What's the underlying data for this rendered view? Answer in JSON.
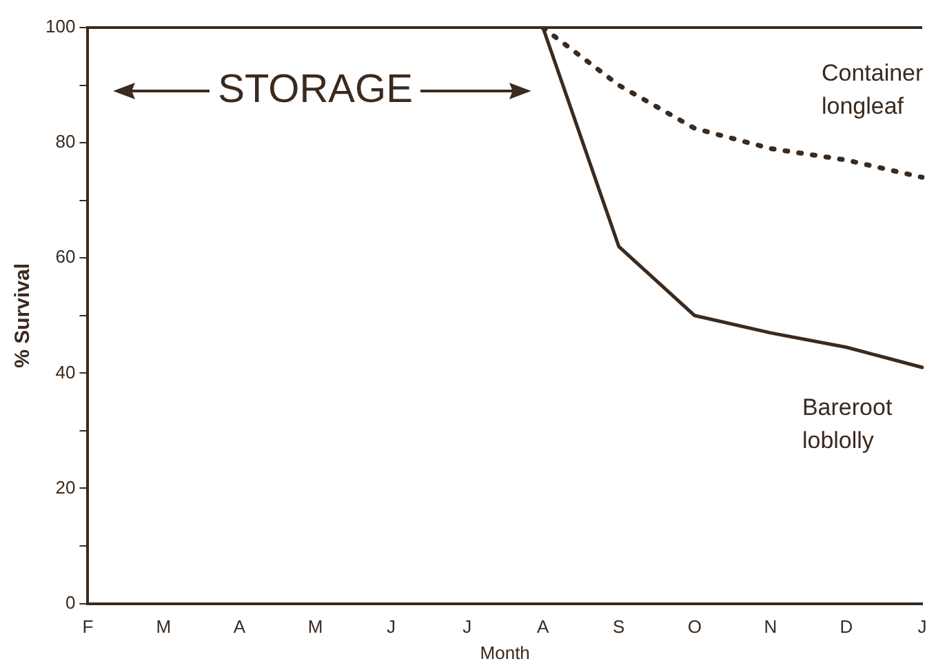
{
  "chart_data": {
    "type": "line",
    "xlabel": "Month",
    "ylabel": "% Survival",
    "categories": [
      "F",
      "M",
      "A",
      "M",
      "J",
      "J",
      "A",
      "S",
      "O",
      "N",
      "D",
      "J"
    ],
    "series": [
      {
        "name": "Container longleaf",
        "color": "#3b2a1e",
        "line_style": "dotted",
        "values": [
          null,
          null,
          null,
          null,
          null,
          null,
          100,
          90,
          82.5,
          79,
          77,
          74
        ]
      },
      {
        "name": "Bareroot loblolly",
        "color": "#3b2a1e",
        "line_style": "solid",
        "values": [
          null,
          null,
          null,
          null,
          null,
          null,
          100,
          62,
          50,
          47,
          44.5,
          41
        ]
      }
    ],
    "ylim": [
      0,
      100
    ],
    "yticks": [
      0,
      {
        "value": 10,
        "label": null
      },
      20,
      {
        "value": 30,
        "label": null
      },
      40,
      {
        "value": 50,
        "label": null
      },
      60,
      {
        "value": 70,
        "label": null
      },
      80,
      {
        "value": 90,
        "label": null
      },
      100
    ],
    "annotations": [
      "STORAGE"
    ],
    "grid": false,
    "legend": false,
    "marker": "none"
  }
}
